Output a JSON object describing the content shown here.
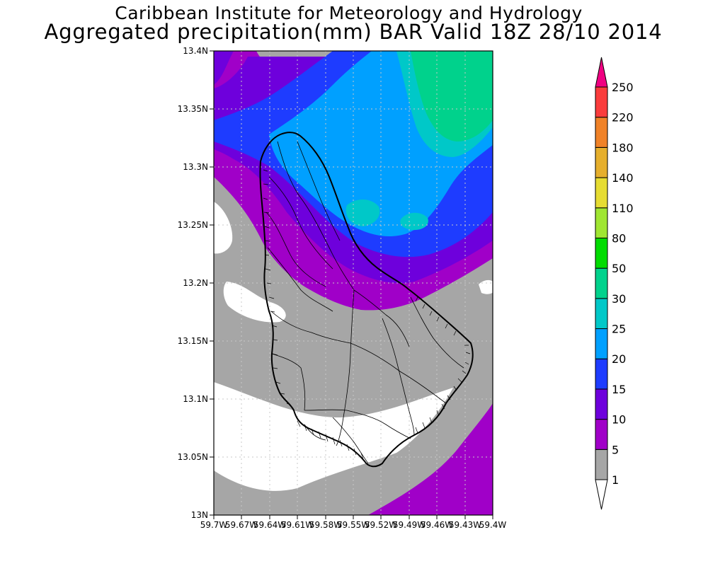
{
  "title": {
    "line1": "Caribbean Institute for Meteorology and Hydrology",
    "line2": "Aggregated precipitation(mm) BAR Valid 18Z 28/10 2014"
  },
  "axes": {
    "y_ticks": [
      "13.4N",
      "13.35N",
      "13.3N",
      "13.25N",
      "13.2N",
      "13.15N",
      "13.1N",
      "13.05N",
      "13N"
    ],
    "x_ticks": [
      "59.7W",
      "59.67W",
      "59.64W",
      "59.61W",
      "59.58W",
      "59.55W",
      "59.52W",
      "59.49W",
      "59.46W",
      "59.43W",
      "59.4W"
    ],
    "lon_range": [
      -59.7,
      -59.4
    ],
    "lat_range": [
      13.0,
      13.4
    ],
    "grid": true
  },
  "colorbar": {
    "levels": [
      "1",
      "5",
      "10",
      "15",
      "20",
      "25",
      "30",
      "50",
      "80",
      "110",
      "140",
      "180",
      "220",
      "250"
    ],
    "colors": [
      "#ffffff",
      "#a6a6a6",
      "#a000c8",
      "#6e00dc",
      "#1e3cff",
      "#00a0ff",
      "#00c8c8",
      "#00d28c",
      "#00dc00",
      "#a0e632",
      "#e6dc32",
      "#e6af2d",
      "#f08228",
      "#fa3c3c",
      "#f00082"
    ]
  },
  "map": {
    "region": "Barbados",
    "field": "Aggregated precipitation (mm)",
    "ocean_colors": {
      "lt1": "#ffffff",
      "1_5": "#a6a6a6",
      "5_10": "#a000c8",
      "10_15": "#6e00dc",
      "15_20": "#1e3cff",
      "20_25": "#00a0ff",
      "25_30": "#00c8c8",
      "30_50": "#00d28c"
    }
  }
}
